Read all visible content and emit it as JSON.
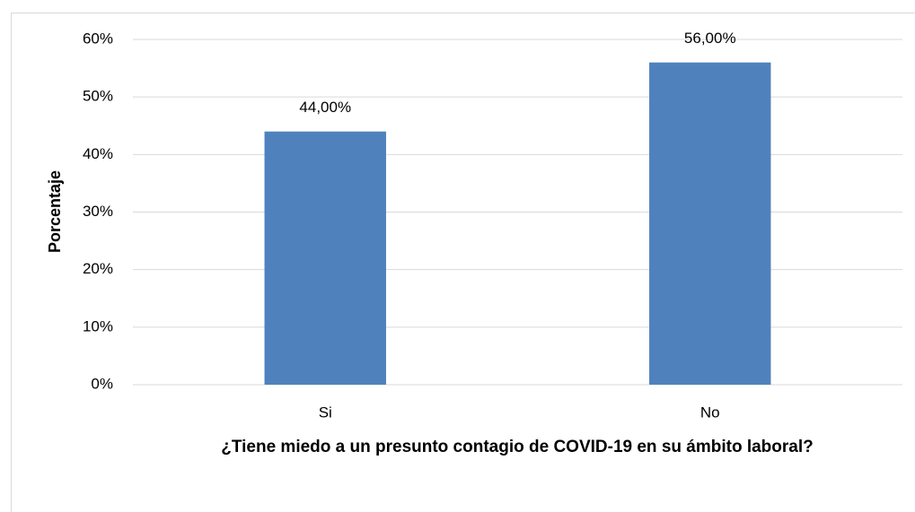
{
  "chart_data": {
    "type": "bar",
    "categories": [
      "Si",
      "No"
    ],
    "values": [
      44,
      56
    ],
    "value_labels": [
      "44,00%",
      "56,00%"
    ],
    "color": "#4f81bd",
    "ylabel": "Porcentaje",
    "xlabel": "¿Tiene miedo a un presunto contagio de COVID-19 en su ámbito laboral?",
    "ylim": [
      0,
      60
    ],
    "yticks": [
      {
        "value": 0,
        "label": "0%"
      },
      {
        "value": 10,
        "label": "10%"
      },
      {
        "value": 20,
        "label": "20%"
      },
      {
        "value": 30,
        "label": "30%"
      },
      {
        "value": 40,
        "label": "40%"
      },
      {
        "value": 50,
        "label": "50%"
      },
      {
        "value": 60,
        "label": "60%"
      }
    ],
    "grid": true
  }
}
